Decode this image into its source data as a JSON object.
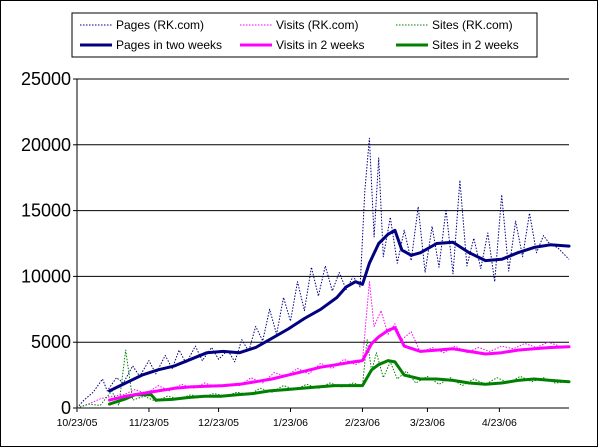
{
  "chart_data": {
    "type": "line",
    "title": "",
    "xlabel": "",
    "ylabel": "",
    "ylim": [
      0,
      25000
    ],
    "yticks": [
      0,
      5000,
      10000,
      15000,
      20000,
      25000
    ],
    "ytick_labels": [
      "0",
      "5000",
      "10000",
      "15000",
      "20000",
      "25000"
    ],
    "x_start": "10/23/05",
    "x_end": "5/23/06",
    "xtick_labels": [
      "10/23/05",
      "11/23/05",
      "12/23/05",
      "1/23/06",
      "2/23/06",
      "3/23/06",
      "4/23/06"
    ],
    "grid": "horizontal",
    "legend": "top, two rows",
    "series": [
      {
        "name": "Pages (RK.com)",
        "color": "#000080",
        "style": "dotted",
        "points": [
          [
            "10/23/05",
            0
          ],
          [
            "10/26/05",
            600
          ],
          [
            "10/30/05",
            1200
          ],
          [
            "11/3/05",
            2200
          ],
          [
            "11/5/05",
            1300
          ],
          [
            "11/9/05",
            2300
          ],
          [
            "11/12/05",
            1900
          ],
          [
            "11/16/05",
            3200
          ],
          [
            "11/19/05",
            2400
          ],
          [
            "11/23/05",
            3600
          ],
          [
            "11/26/05",
            2600
          ],
          [
            "11/30/05",
            4000
          ],
          [
            "12/3/05",
            3000
          ],
          [
            "12/6/05",
            4400
          ],
          [
            "12/9/05",
            3400
          ],
          [
            "12/13/05",
            4700
          ],
          [
            "12/16/05",
            3600
          ],
          [
            "12/20/05",
            4600
          ],
          [
            "12/23/05",
            3700
          ],
          [
            "12/27/05",
            4400
          ],
          [
            "12/30/05",
            3500
          ],
          [
            "1/2/06",
            5200
          ],
          [
            "1/5/06",
            4300
          ],
          [
            "1/8/06",
            6200
          ],
          [
            "1/11/06",
            5100
          ],
          [
            "1/14/06",
            7500
          ],
          [
            "1/17/06",
            5600
          ],
          [
            "1/20/06",
            8400
          ],
          [
            "1/23/06",
            6600
          ],
          [
            "1/26/06",
            9600
          ],
          [
            "1/29/06",
            7400
          ],
          [
            "2/1/06",
            10700
          ],
          [
            "2/4/06",
            8500
          ],
          [
            "2/7/06",
            10800
          ],
          [
            "2/10/06",
            8900
          ],
          [
            "2/13/06",
            10300
          ],
          [
            "2/16/06",
            9000
          ],
          [
            "2/19/06",
            10000
          ],
          [
            "2/22/06",
            9200
          ],
          [
            "2/24/06",
            16500
          ],
          [
            "2/26/06",
            20500
          ],
          [
            "2/28/06",
            13000
          ],
          [
            "3/2/06",
            19000
          ],
          [
            "3/4/06",
            11500
          ],
          [
            "3/7/06",
            14500
          ],
          [
            "3/10/06",
            11000
          ],
          [
            "3/13/06",
            13500
          ],
          [
            "3/16/06",
            11200
          ],
          [
            "3/19/06",
            15300
          ],
          [
            "3/22/06",
            10300
          ],
          [
            "3/25/06",
            13800
          ],
          [
            "3/28/06",
            10700
          ],
          [
            "3/31/06",
            15100
          ],
          [
            "4/3/06",
            10200
          ],
          [
            "4/6/06",
            17300
          ],
          [
            "4/9/06",
            10800
          ],
          [
            "4/12/06",
            12900
          ],
          [
            "4/15/06",
            10600
          ],
          [
            "4/18/06",
            13300
          ],
          [
            "4/21/06",
            9600
          ],
          [
            "4/24/06",
            16200
          ],
          [
            "4/27/06",
            10400
          ],
          [
            "4/30/06",
            14200
          ],
          [
            "5/3/06",
            11500
          ],
          [
            "5/6/06",
            14800
          ],
          [
            "5/9/06",
            11800
          ],
          [
            "5/12/06",
            13100
          ],
          [
            "5/15/06",
            12400
          ],
          [
            "5/18/06",
            12200
          ],
          [
            "5/23/06",
            11300
          ]
        ]
      },
      {
        "name": "Visits (RK.com)",
        "color": "#ff00ff",
        "style": "dotted",
        "points": [
          [
            "10/23/05",
            0
          ],
          [
            "10/28/05",
            300
          ],
          [
            "11/2/05",
            700
          ],
          [
            "11/7/05",
            900
          ],
          [
            "11/12/05",
            1000
          ],
          [
            "11/17/05",
            1400
          ],
          [
            "11/22/05",
            1100
          ],
          [
            "11/27/05",
            1700
          ],
          [
            "12/2/05",
            1300
          ],
          [
            "12/7/05",
            1800
          ],
          [
            "12/12/05",
            1500
          ],
          [
            "12/17/05",
            1900
          ],
          [
            "12/22/05",
            1600
          ],
          [
            "12/27/05",
            1800
          ],
          [
            "1/1/06",
            1700
          ],
          [
            "1/6/06",
            2300
          ],
          [
            "1/11/06",
            1900
          ],
          [
            "1/16/06",
            2700
          ],
          [
            "1/21/06",
            2400
          ],
          [
            "1/26/06",
            3000
          ],
          [
            "1/31/06",
            2600
          ],
          [
            "2/5/06",
            3400
          ],
          [
            "2/10/06",
            3000
          ],
          [
            "2/15/06",
            3700
          ],
          [
            "2/20/06",
            3300
          ],
          [
            "2/23/06",
            3600
          ],
          [
            "2/26/06",
            9600
          ],
          [
            "2/28/06",
            6200
          ],
          [
            "3/3/06",
            7400
          ],
          [
            "3/6/06",
            5600
          ],
          [
            "3/9/06",
            6400
          ],
          [
            "3/12/06",
            5200
          ],
          [
            "3/16/06",
            5800
          ],
          [
            "3/20/06",
            4200
          ],
          [
            "3/25/06",
            4600
          ],
          [
            "3/30/06",
            4200
          ],
          [
            "4/4/06",
            4700
          ],
          [
            "4/9/06",
            4200
          ],
          [
            "4/14/06",
            4600
          ],
          [
            "4/19/06",
            4300
          ],
          [
            "4/24/06",
            4700
          ],
          [
            "4/29/06",
            4500
          ],
          [
            "5/4/06",
            4900
          ],
          [
            "5/9/06",
            4600
          ],
          [
            "5/14/06",
            5000
          ],
          [
            "5/19/06",
            4700
          ],
          [
            "5/23/06",
            4600
          ]
        ]
      },
      {
        "name": "Sites (RK.com)",
        "color": "#008000",
        "style": "dotted",
        "points": [
          [
            "10/23/05",
            0
          ],
          [
            "10/28/05",
            300
          ],
          [
            "11/2/05",
            200
          ],
          [
            "11/7/05",
            1300
          ],
          [
            "11/10/05",
            200
          ],
          [
            "11/13/05",
            4400
          ],
          [
            "11/16/05",
            600
          ],
          [
            "11/21/05",
            900
          ],
          [
            "11/26/05",
            500
          ],
          [
            "12/1/05",
            900
          ],
          [
            "12/6/05",
            700
          ],
          [
            "12/11/05",
            1000
          ],
          [
            "12/16/05",
            800
          ],
          [
            "12/21/05",
            1100
          ],
          [
            "12/26/05",
            900
          ],
          [
            "12/31/05",
            1200
          ],
          [
            "1/5/06",
            1000
          ],
          [
            "1/10/06",
            1500
          ],
          [
            "1/15/06",
            1200
          ],
          [
            "1/20/06",
            1700
          ],
          [
            "1/25/06",
            1400
          ],
          [
            "1/30/06",
            1800
          ],
          [
            "2/4/06",
            1500
          ],
          [
            "2/9/06",
            1900
          ],
          [
            "2/14/06",
            1600
          ],
          [
            "2/19/06",
            1900
          ],
          [
            "2/23/06",
            1700
          ],
          [
            "2/25/06",
            5200
          ],
          [
            "2/27/06",
            2800
          ],
          [
            "3/1/06",
            4200
          ],
          [
            "3/4/06",
            2300
          ],
          [
            "3/7/06",
            3500
          ],
          [
            "3/10/06",
            2200
          ],
          [
            "3/14/06",
            2800
          ],
          [
            "3/18/06",
            1900
          ],
          [
            "3/23/06",
            2400
          ],
          [
            "3/28/06",
            1800
          ],
          [
            "4/2/06",
            2300
          ],
          [
            "4/7/06",
            1700
          ],
          [
            "4/12/06",
            2200
          ],
          [
            "4/17/06",
            1800
          ],
          [
            "4/22/06",
            2300
          ],
          [
            "4/27/06",
            1900
          ],
          [
            "5/2/06",
            2400
          ],
          [
            "5/7/06",
            2000
          ],
          [
            "5/12/06",
            2300
          ],
          [
            "5/17/06",
            1900
          ],
          [
            "5/23/06",
            2000
          ]
        ]
      },
      {
        "name": "Pages in two weeks",
        "color": "#000080",
        "style": "solid-thick",
        "points": [
          [
            "11/6/05",
            1300
          ],
          [
            "11/13/05",
            1900
          ],
          [
            "11/20/05",
            2500
          ],
          [
            "11/27/05",
            2900
          ],
          [
            "12/4/05",
            3200
          ],
          [
            "12/11/05",
            3700
          ],
          [
            "12/18/05",
            4200
          ],
          [
            "12/25/05",
            4300
          ],
          [
            "1/1/06",
            4200
          ],
          [
            "1/8/06",
            4600
          ],
          [
            "1/15/06",
            5300
          ],
          [
            "1/22/06",
            6000
          ],
          [
            "1/29/06",
            6800
          ],
          [
            "2/5/06",
            7500
          ],
          [
            "2/12/06",
            8400
          ],
          [
            "2/16/06",
            9200
          ],
          [
            "2/20/06",
            9600
          ],
          [
            "2/23/06",
            9400
          ],
          [
            "2/26/06",
            11000
          ],
          [
            "3/2/06",
            12500
          ],
          [
            "3/6/06",
            13200
          ],
          [
            "3/9/06",
            13500
          ],
          [
            "3/12/06",
            12000
          ],
          [
            "3/16/06",
            11600
          ],
          [
            "3/20/06",
            11800
          ],
          [
            "3/27/06",
            12500
          ],
          [
            "4/3/06",
            12600
          ],
          [
            "4/10/06",
            11800
          ],
          [
            "4/17/06",
            11200
          ],
          [
            "4/24/06",
            11300
          ],
          [
            "5/1/06",
            11800
          ],
          [
            "5/8/06",
            12200
          ],
          [
            "5/15/06",
            12400
          ],
          [
            "5/23/06",
            12300
          ]
        ]
      },
      {
        "name": "Visits in 2 weeks",
        "color": "#ff00ff",
        "style": "solid-thick",
        "points": [
          [
            "11/6/05",
            600
          ],
          [
            "11/13/05",
            900
          ],
          [
            "11/20/05",
            1100
          ],
          [
            "11/27/05",
            1300
          ],
          [
            "12/4/05",
            1500
          ],
          [
            "12/11/05",
            1600
          ],
          [
            "12/18/05",
            1650
          ],
          [
            "12/25/05",
            1700
          ],
          [
            "1/1/06",
            1800
          ],
          [
            "1/8/06",
            2000
          ],
          [
            "1/15/06",
            2200
          ],
          [
            "1/22/06",
            2500
          ],
          [
            "1/29/06",
            2800
          ],
          [
            "2/5/06",
            3100
          ],
          [
            "2/12/06",
            3300
          ],
          [
            "2/19/06",
            3500
          ],
          [
            "2/23/06",
            3600
          ],
          [
            "2/27/06",
            4900
          ],
          [
            "3/2/06",
            5400
          ],
          [
            "3/6/06",
            5900
          ],
          [
            "3/9/06",
            6100
          ],
          [
            "3/13/06",
            4700
          ],
          [
            "3/20/06",
            4300
          ],
          [
            "3/27/06",
            4400
          ],
          [
            "4/3/06",
            4500
          ],
          [
            "4/10/06",
            4300
          ],
          [
            "4/17/06",
            4100
          ],
          [
            "4/24/06",
            4200
          ],
          [
            "5/1/06",
            4400
          ],
          [
            "5/8/06",
            4500
          ],
          [
            "5/15/06",
            4600
          ],
          [
            "5/23/06",
            4650
          ]
        ]
      },
      {
        "name": "Sites in 2 weeks",
        "color": "#008000",
        "style": "solid-thick",
        "points": [
          [
            "11/6/05",
            300
          ],
          [
            "11/13/05",
            700
          ],
          [
            "11/17/05",
            1000
          ],
          [
            "11/24/05",
            1000
          ],
          [
            "11/26/05",
            600
          ],
          [
            "12/3/05",
            650
          ],
          [
            "12/10/05",
            800
          ],
          [
            "12/17/05",
            900
          ],
          [
            "12/24/05",
            900
          ],
          [
            "12/31/05",
            1000
          ],
          [
            "1/7/06",
            1100
          ],
          [
            "1/14/06",
            1300
          ],
          [
            "1/21/06",
            1400
          ],
          [
            "1/28/06",
            1500
          ],
          [
            "2/4/06",
            1600
          ],
          [
            "2/11/06",
            1700
          ],
          [
            "2/18/06",
            1700
          ],
          [
            "2/23/06",
            1700
          ],
          [
            "2/27/06",
            2900
          ],
          [
            "3/2/06",
            3300
          ],
          [
            "3/6/06",
            3600
          ],
          [
            "3/9/06",
            3500
          ],
          [
            "3/13/06",
            2500
          ],
          [
            "3/20/06",
            2200
          ],
          [
            "3/27/06",
            2200
          ],
          [
            "4/3/06",
            2100
          ],
          [
            "4/10/06",
            1900
          ],
          [
            "4/17/06",
            1800
          ],
          [
            "4/24/06",
            1900
          ],
          [
            "5/1/06",
            2100
          ],
          [
            "5/8/06",
            2200
          ],
          [
            "5/15/06",
            2100
          ],
          [
            "5/23/06",
            2000
          ]
        ]
      }
    ]
  }
}
